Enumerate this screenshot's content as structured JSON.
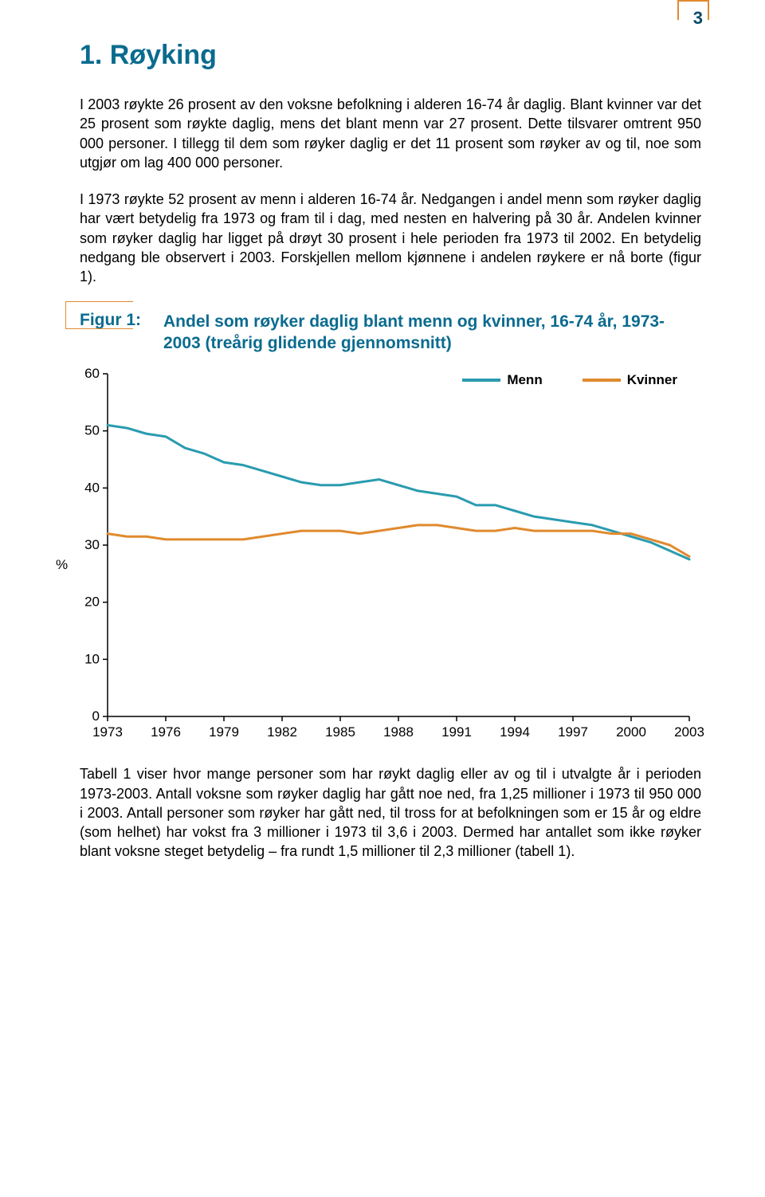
{
  "page_number": "3",
  "page_number_border_color": "#e08a2e",
  "page_number_text_color": "#0a4a6a",
  "heading": {
    "text": "1. Røyking",
    "color": "#0a6b8f"
  },
  "paragraph1": "I 2003 røykte 26 prosent av den voksne befolkning i alderen 16-74 år daglig. Blant kvinner var det 25 prosent som røykte daglig, mens det blant menn var 27 prosent. Dette tilsvarer omtrent 950 000 personer. I tillegg til dem som røyker daglig er det 11 prosent som røyker av og til, noe som utgjør om lag 400 000 personer.",
  "paragraph2": "I 1973 røykte 52 prosent av menn i alderen 16-74 år. Nedgangen i andel menn som røyker daglig har vært betydelig fra 1973 og fram til i dag, med nesten en halvering på 30 år. Andelen kvinner som røyker daglig har ligget på drøyt 30 prosent i hele perioden fra 1973 til 2002. En betydelig nedgang ble observert i 2003. Forskjellen mellom kjønnene i andelen røykere er nå borte (figur 1).",
  "figure": {
    "label": "Figur 1:",
    "title": "Andel som røyker daglig blant menn og kvinner, 16-74 år, 1973-2003 (treårig glidende gjennomsnitt)",
    "label_color": "#0a6b8f",
    "title_color": "#0a6b8f",
    "box_border_color": "#e08a2e"
  },
  "chart": {
    "type": "line",
    "ylim": [
      0,
      60
    ],
    "ytick_step": 10,
    "yticks": [
      0,
      10,
      20,
      30,
      40,
      50,
      60
    ],
    "xlim": [
      1973,
      2003
    ],
    "xticks": [
      1973,
      1976,
      1979,
      1982,
      1985,
      1988,
      1991,
      1994,
      1997,
      2000,
      2003
    ],
    "y_unit": "%",
    "legend": [
      {
        "label": "Menn",
        "color": "#2a9bb0"
      },
      {
        "label": "Kvinner",
        "color": "#e08a2e"
      }
    ],
    "series": {
      "menn": {
        "color": "#2a9bb0",
        "line_width": 3,
        "points": [
          {
            "x": 1973,
            "y": 51
          },
          {
            "x": 1974,
            "y": 50.5
          },
          {
            "x": 1975,
            "y": 49.5
          },
          {
            "x": 1976,
            "y": 49
          },
          {
            "x": 1977,
            "y": 47
          },
          {
            "x": 1978,
            "y": 46
          },
          {
            "x": 1979,
            "y": 44.5
          },
          {
            "x": 1980,
            "y": 44
          },
          {
            "x": 1981,
            "y": 43
          },
          {
            "x": 1982,
            "y": 42
          },
          {
            "x": 1983,
            "y": 41
          },
          {
            "x": 1984,
            "y": 40.5
          },
          {
            "x": 1985,
            "y": 40.5
          },
          {
            "x": 1986,
            "y": 41
          },
          {
            "x": 1987,
            "y": 41.5
          },
          {
            "x": 1988,
            "y": 40.5
          },
          {
            "x": 1989,
            "y": 39.5
          },
          {
            "x": 1990,
            "y": 39
          },
          {
            "x": 1991,
            "y": 38.5
          },
          {
            "x": 1992,
            "y": 37
          },
          {
            "x": 1993,
            "y": 37
          },
          {
            "x": 1994,
            "y": 36
          },
          {
            "x": 1995,
            "y": 35
          },
          {
            "x": 1996,
            "y": 34.5
          },
          {
            "x": 1997,
            "y": 34
          },
          {
            "x": 1998,
            "y": 33.5
          },
          {
            "x": 1999,
            "y": 32.5
          },
          {
            "x": 2000,
            "y": 31.5
          },
          {
            "x": 2001,
            "y": 30.5
          },
          {
            "x": 2002,
            "y": 29
          },
          {
            "x": 2003,
            "y": 27.5
          }
        ]
      },
      "kvinner": {
        "color": "#e08a2e",
        "line_width": 3,
        "points": [
          {
            "x": 1973,
            "y": 32
          },
          {
            "x": 1974,
            "y": 31.5
          },
          {
            "x": 1975,
            "y": 31.5
          },
          {
            "x": 1976,
            "y": 31
          },
          {
            "x": 1977,
            "y": 31
          },
          {
            "x": 1978,
            "y": 31
          },
          {
            "x": 1979,
            "y": 31
          },
          {
            "x": 1980,
            "y": 31
          },
          {
            "x": 1981,
            "y": 31.5
          },
          {
            "x": 1982,
            "y": 32
          },
          {
            "x": 1983,
            "y": 32.5
          },
          {
            "x": 1984,
            "y": 32.5
          },
          {
            "x": 1985,
            "y": 32.5
          },
          {
            "x": 1986,
            "y": 32
          },
          {
            "x": 1987,
            "y": 32.5
          },
          {
            "x": 1988,
            "y": 33
          },
          {
            "x": 1989,
            "y": 33.5
          },
          {
            "x": 1990,
            "y": 33.5
          },
          {
            "x": 1991,
            "y": 33
          },
          {
            "x": 1992,
            "y": 32.5
          },
          {
            "x": 1993,
            "y": 32.5
          },
          {
            "x": 1994,
            "y": 33
          },
          {
            "x": 1995,
            "y": 32.5
          },
          {
            "x": 1996,
            "y": 32.5
          },
          {
            "x": 1997,
            "y": 32.5
          },
          {
            "x": 1998,
            "y": 32.5
          },
          {
            "x": 1999,
            "y": 32
          },
          {
            "x": 2000,
            "y": 32
          },
          {
            "x": 2001,
            "y": 31
          },
          {
            "x": 2002,
            "y": 30
          },
          {
            "x": 2003,
            "y": 28
          }
        ]
      }
    },
    "axis_color": "#000000",
    "tick_fontsize": 17,
    "background_color": "#ffffff"
  },
  "paragraph3": "Tabell 1 viser hvor mange personer som har røykt daglig eller av og til i utvalgte år i perioden 1973-2003. Antall voksne som røyker daglig har gått noe ned, fra 1,25 millioner i 1973 til 950 000 i 2003. Antall personer som røyker har gått ned, til tross for at befolkningen som er 15 år og eldre (som helhet) har vokst fra 3 millioner i 1973 til 3,6 i 2003. Dermed har antallet som ikke røyker blant voksne steget betydelig – fra rundt 1,5 millioner til 2,3 millioner (tabell 1)."
}
